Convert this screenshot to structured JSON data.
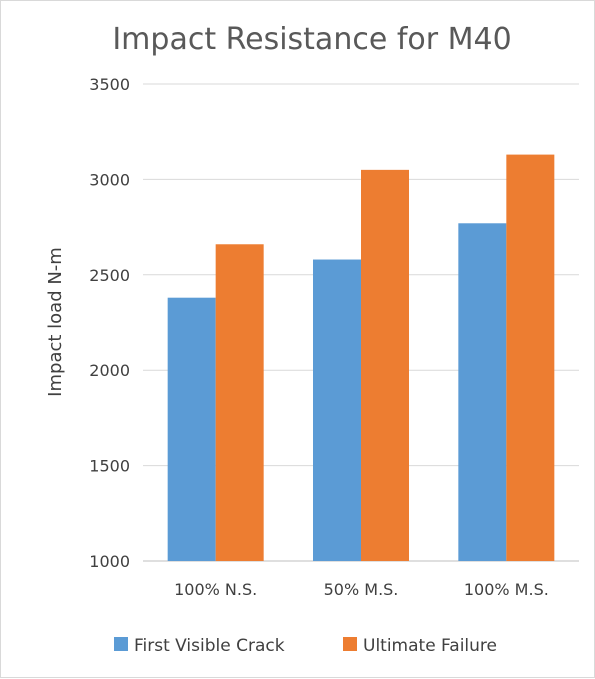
{
  "chart_data": {
    "type": "bar",
    "title": "Impact Resistance for M40",
    "xlabel": "",
    "ylabel": "Impact load N-m",
    "categories": [
      "100% N.S.",
      "50% M.S.",
      "100% M.S."
    ],
    "series": [
      {
        "name": "First Visible Crack",
        "color": "#5b9bd5",
        "values": [
          2380,
          2580,
          2770
        ]
      },
      {
        "name": "Ultimate Failure",
        "color": "#ed7d31",
        "values": [
          2660,
          3050,
          3130
        ]
      }
    ],
    "ylim": [
      1000,
      3500
    ],
    "yticks": [
      "1000",
      "1500",
      "2000",
      "2500",
      "3000",
      "3500"
    ],
    "grid": true,
    "legend_position": "bottom"
  }
}
